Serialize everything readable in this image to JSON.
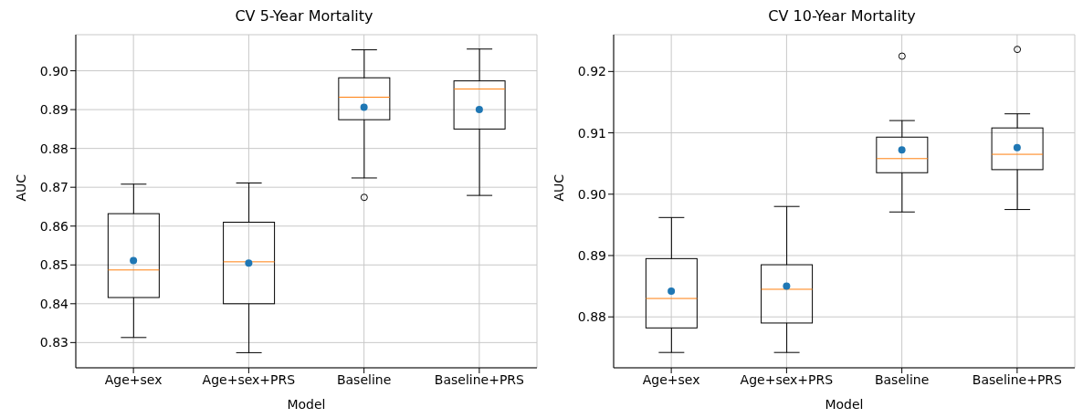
{
  "chart_data": [
    {
      "type": "box",
      "title": "CV 5-Year Mortality",
      "xlabel": "Model",
      "ylabel": "AUC",
      "categories": [
        "Age+sex",
        "Age+sex+PRS",
        "Baseline",
        "Baseline+PRS"
      ],
      "ylim": [
        0.8235,
        0.9093
      ],
      "yticks": [
        {
          "value": 0.83,
          "label": "0.83"
        },
        {
          "value": 0.84,
          "label": "0.84"
        },
        {
          "value": 0.85,
          "label": "0.85"
        },
        {
          "value": 0.86,
          "label": "0.86"
        },
        {
          "value": 0.87,
          "label": "0.87"
        },
        {
          "value": 0.88,
          "label": "0.88"
        },
        {
          "value": 0.89,
          "label": "0.89"
        },
        {
          "value": 0.9,
          "label": "0.90"
        }
      ],
      "grid": true,
      "boxes": [
        {
          "low": 0.8313,
          "q1": 0.8416,
          "median": 0.8487,
          "q3": 0.8632,
          "high": 0.8708,
          "mean": 0.8511
        },
        {
          "low": 0.8274,
          "q1": 0.84,
          "median": 0.8508,
          "q3": 0.861,
          "high": 0.8711,
          "mean": 0.8505
        },
        {
          "low": 0.8724,
          "q1": 0.8874,
          "median": 0.8932,
          "q3": 0.8982,
          "high": 0.9054,
          "mean": 0.8906,
          "outliers": [
            0.8674
          ]
        },
        {
          "low": 0.8679,
          "q1": 0.885,
          "median": 0.8953,
          "q3": 0.8974,
          "high": 0.9056,
          "mean": 0.89
        }
      ]
    },
    {
      "type": "box",
      "title": "CV 10-Year Mortality",
      "xlabel": "Model",
      "ylabel": "AUC",
      "categories": [
        "Age+sex",
        "Age+sex+PRS",
        "Baseline",
        "Baseline+PRS"
      ],
      "ylim": [
        0.8717,
        0.926
      ],
      "yticks": [
        {
          "value": 0.88,
          "label": "0.88"
        },
        {
          "value": 0.89,
          "label": "0.89"
        },
        {
          "value": 0.9,
          "label": "0.90"
        },
        {
          "value": 0.91,
          "label": "0.91"
        },
        {
          "value": 0.92,
          "label": "0.92"
        }
      ],
      "grid": true,
      "boxes": [
        {
          "low": 0.8742,
          "q1": 0.8782,
          "median": 0.883,
          "q3": 0.8895,
          "high": 0.8962,
          "mean": 0.8842
        },
        {
          "low": 0.8742,
          "q1": 0.879,
          "median": 0.8845,
          "q3": 0.8885,
          "high": 0.898,
          "mean": 0.885
        },
        {
          "low": 0.8971,
          "q1": 0.9035,
          "median": 0.9058,
          "q3": 0.9093,
          "high": 0.912,
          "mean": 0.9072,
          "outliers": [
            0.9225
          ]
        },
        {
          "low": 0.8975,
          "q1": 0.904,
          "median": 0.9065,
          "q3": 0.9108,
          "high": 0.9131,
          "mean": 0.9076,
          "outliers": [
            0.9236
          ]
        }
      ]
    }
  ]
}
